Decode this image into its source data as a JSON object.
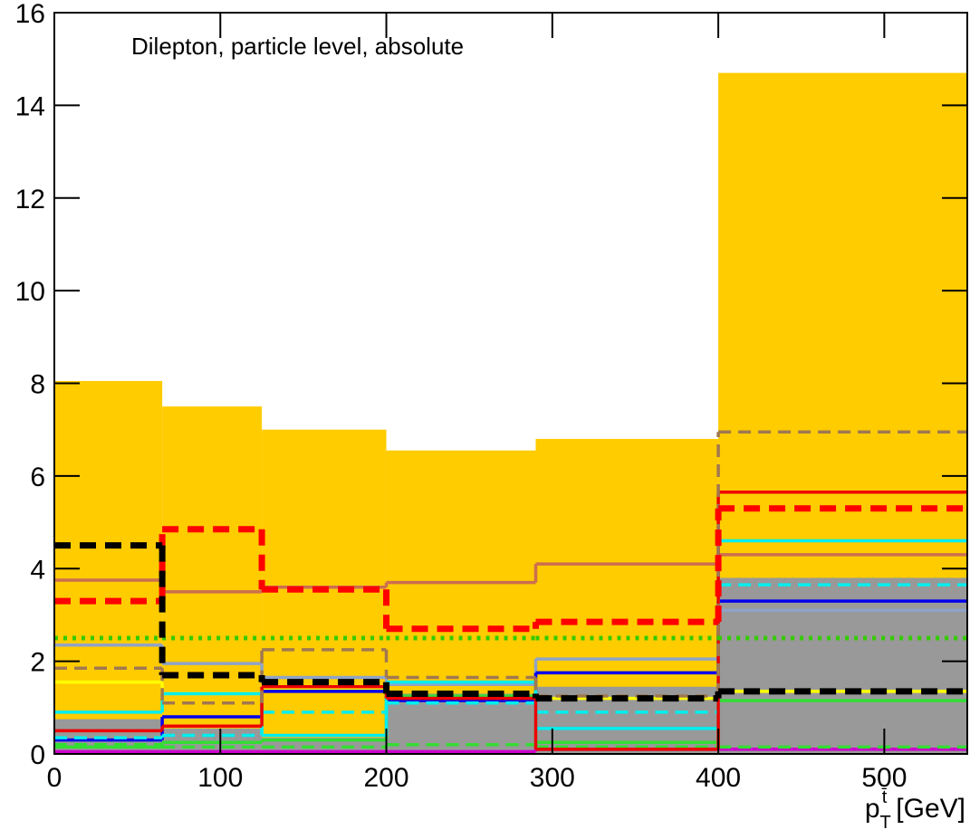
{
  "chart_data": {
    "type": "histogram",
    "annotation": "Dilepton, particle level, absolute",
    "x_label": {
      "symbol": "p",
      "sub": "T",
      "sup": "t̄",
      "unit": "[GeV]"
    },
    "bins": [
      0,
      65,
      125,
      200,
      290,
      400,
      550
    ],
    "xlim": [
      0,
      550
    ],
    "xticks": [
      0,
      100,
      200,
      300,
      400,
      500
    ],
    "ylim": [
      0,
      16
    ],
    "yticks": [
      0,
      2,
      4,
      6,
      8,
      10,
      12,
      14,
      16
    ],
    "series": [
      {
        "color": "#ffcc00",
        "style": "fill",
        "values": [
          8.05,
          7.5,
          7.0,
          6.55,
          6.8,
          14.7
        ]
      },
      {
        "color": "#999999",
        "style": "fill",
        "values": [
          0.75,
          0.55,
          0.35,
          1.3,
          1.45,
          3.8
        ]
      },
      {
        "color": "#cc00cc",
        "style": "solid",
        "values": [
          0.05,
          0.05,
          0.05,
          0.05,
          0.1,
          0.1
        ]
      },
      {
        "color": "#33dd33",
        "style": "dashed",
        "values": [
          0.2,
          0.15,
          0.15,
          0.2,
          0.15,
          0.15
        ]
      },
      {
        "color": "#33dd33",
        "style": "solid",
        "values": [
          0.15,
          0.25,
          0.3,
          1.25,
          0.25,
          1.15
        ]
      },
      {
        "color": "#ffff00",
        "style": "solid",
        "values": [
          1.55,
          1.3,
          1.4,
          1.15,
          1.2,
          1.35
        ]
      },
      {
        "color": "#8fa3c8",
        "style": "solid",
        "values": [
          2.35,
          1.95,
          1.65,
          1.5,
          2.05,
          3.1
        ]
      },
      {
        "color": "#0000ee",
        "style": "solid",
        "values": [
          0.3,
          0.8,
          1.35,
          1.15,
          1.75,
          3.3
        ]
      },
      {
        "color": "#00eeee",
        "style": "dashed",
        "values": [
          0.35,
          0.4,
          0.9,
          1.1,
          0.9,
          3.65
        ]
      },
      {
        "color": "#00eeee",
        "style": "solid",
        "values": [
          0.9,
          1.3,
          0.4,
          1.55,
          0.55,
          4.6
        ]
      },
      {
        "color": "#cc6e50",
        "style": "solid",
        "values": [
          3.75,
          3.5,
          3.6,
          3.7,
          4.1,
          4.3
        ]
      },
      {
        "color": "#ee0000",
        "style": "solid",
        "values": [
          0.5,
          0.6,
          1.45,
          1.2,
          0.1,
          5.65
        ]
      },
      {
        "color": "#a07850",
        "style": "dashed",
        "values": [
          1.85,
          1.1,
          2.25,
          1.65,
          1.25,
          6.95
        ]
      },
      {
        "color": "#33cc00",
        "style": "dotted",
        "values": [
          2.5,
          2.5,
          2.5,
          2.5,
          2.5,
          2.5
        ]
      },
      {
        "color": "#ff0000",
        "style": "thick-dashed",
        "values": [
          3.3,
          4.85,
          3.55,
          2.7,
          2.85,
          5.3
        ]
      },
      {
        "color": "#000000",
        "style": "thick-dashed",
        "values": [
          4.5,
          1.7,
          1.55,
          1.3,
          1.2,
          1.35
        ]
      }
    ]
  }
}
